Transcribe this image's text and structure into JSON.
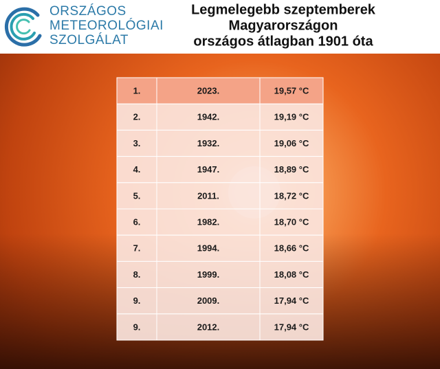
{
  "header": {
    "logo": [
      "ORSZÁGOS",
      "METEOROLÓGIAI",
      "SZOLGÁLAT"
    ],
    "title": [
      "Legmelegebb szeptemberek",
      "Magyarországon",
      "országos átlagban 1901 óta"
    ]
  },
  "table": {
    "rows": [
      [
        "1.",
        "2023.",
        "19,57 °C"
      ],
      [
        "2.",
        "1942.",
        "19,19 °C"
      ],
      [
        "3.",
        "1932.",
        "19,06 °C"
      ],
      [
        "4.",
        "1947.",
        "18,89 °C"
      ],
      [
        "5.",
        "2011.",
        "18,72 °C"
      ],
      [
        "6.",
        "1982.",
        "18,70 °C"
      ],
      [
        "7.",
        "1994.",
        "18,66 °C"
      ],
      [
        "8.",
        "1999.",
        "18,08 °C"
      ],
      [
        "9.",
        "2009.",
        "17,94 °C"
      ],
      [
        "9.",
        "2012.",
        "17,94 °C"
      ]
    ]
  }
}
